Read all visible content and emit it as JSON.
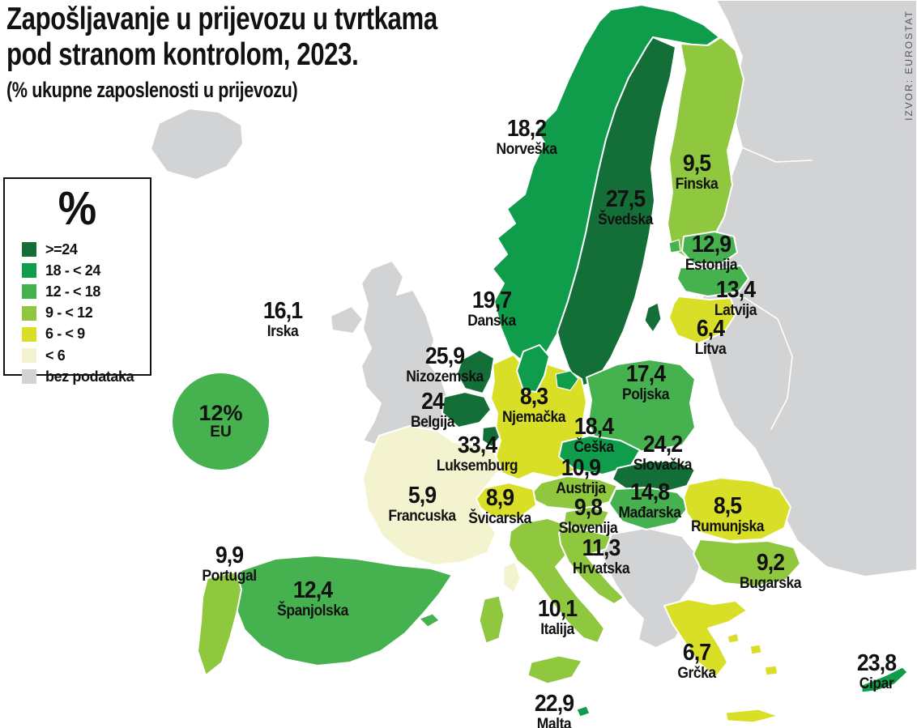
{
  "title": {
    "line1": "Zapošljavanje u prijevozu u tvrtkama",
    "line2": "pod stranom kontrolom, 2023.",
    "subtitle": "(% ukupne zaposlenosti u prijevozu)"
  },
  "source": "IZVOR: EUROSTAT",
  "legend": {
    "title": "%",
    "items": [
      {
        "label": ">=24",
        "min": 24,
        "color": "#136e38"
      },
      {
        "label": "18 - < 24",
        "min": 18,
        "max": 24,
        "color": "#0f9d4b"
      },
      {
        "label": "12 - < 18",
        "min": 12,
        "max": 18,
        "color": "#46b14f"
      },
      {
        "label": "9 - < 12",
        "min": 9,
        "max": 12,
        "color": "#8fc73e"
      },
      {
        "label": "6 - < 9",
        "min": 6,
        "max": 9,
        "color": "#d9df26"
      },
      {
        "label": "< 6",
        "max": 6,
        "color": "#f3f4cf"
      },
      {
        "label": "bez podataka",
        "color": "#d2d3d4"
      }
    ]
  },
  "eu_badge": {
    "value_label": "12%",
    "label": "EU"
  },
  "colors": {
    "sea": "#ffffff",
    "no_data": "#d2d3d4",
    "border": "#ffffff",
    "text": "#111111",
    "source_text": "#55565a"
  },
  "chart_data": {
    "type": "heatmap",
    "subtype": "choropleth",
    "region": "Europe",
    "title": "Zapošljavanje u prijevozu u tvrtkama pod stranom kontrolom, 2023.",
    "unit": "% ukupne zaposlenosti u prijevozu",
    "year": "2023",
    "legend_position": "left",
    "no_data_label": "bez podataka",
    "eu": {
      "name": "EU",
      "value": 12,
      "label": "12%"
    },
    "countries": [
      {
        "id": "norveska",
        "name": "Norveška",
        "label": "18,2",
        "value": 18.2
      },
      {
        "id": "svedska",
        "name": "Švedska",
        "label": "27,5",
        "value": 27.5
      },
      {
        "id": "finska",
        "name": "Finska",
        "label": "9,5",
        "value": 9.5
      },
      {
        "id": "estonija",
        "name": "Estonija",
        "label": "12,9",
        "value": 12.9
      },
      {
        "id": "latvija",
        "name": "Latvija",
        "label": "13,4",
        "value": 13.4
      },
      {
        "id": "litva",
        "name": "Litva",
        "label": "6,4",
        "value": 6.4
      },
      {
        "id": "danska",
        "name": "Danska",
        "label": "19,7",
        "value": 19.7
      },
      {
        "id": "irska",
        "name": "Irska",
        "label": "16,1",
        "value": 16.1
      },
      {
        "id": "nizozemska",
        "name": "Nizozemska",
        "label": "25,9",
        "value": 25.9
      },
      {
        "id": "belgija",
        "name": "Belgija",
        "label": "24",
        "value": 24
      },
      {
        "id": "luksemburg",
        "name": "Luksemburg",
        "label": "33,4",
        "value": 33.4
      },
      {
        "id": "njemacka",
        "name": "Njemačka",
        "label": "8,3",
        "value": 8.3
      },
      {
        "id": "poljska",
        "name": "Poljska",
        "label": "17,4",
        "value": 17.4
      },
      {
        "id": "ceska",
        "name": "Češka",
        "label": "18,4",
        "value": 18.4
      },
      {
        "id": "slovacka",
        "name": "Slovačka",
        "label": "24,2",
        "value": 24.2
      },
      {
        "id": "austrija",
        "name": "Austrija",
        "label": "10,9",
        "value": 10.9
      },
      {
        "id": "madarska",
        "name": "Mađarska",
        "label": "14,8",
        "value": 14.8
      },
      {
        "id": "svicarska",
        "name": "Švicarska",
        "label": "8,9",
        "value": 8.9
      },
      {
        "id": "slovenija",
        "name": "Slovenija",
        "label": "9,8",
        "value": 9.8
      },
      {
        "id": "hrvatska",
        "name": "Hrvatska",
        "label": "11,3",
        "value": 11.3
      },
      {
        "id": "francuska",
        "name": "Francuska",
        "label": "5,9",
        "value": 5.9
      },
      {
        "id": "rumunjska",
        "name": "Rumunjska",
        "label": "8,5",
        "value": 8.5
      },
      {
        "id": "bugarska",
        "name": "Bugarska",
        "label": "9,2",
        "value": 9.2
      },
      {
        "id": "portugal",
        "name": "Portugal",
        "label": "9,9",
        "value": 9.9
      },
      {
        "id": "spanjolska",
        "name": "Španjolska",
        "label": "12,4",
        "value": 12.4
      },
      {
        "id": "italija",
        "name": "Italija",
        "label": "10,1",
        "value": 10.1
      },
      {
        "id": "grcka",
        "name": "Grčka",
        "label": "6,7",
        "value": 6.7
      },
      {
        "id": "malta",
        "name": "Malta",
        "label": "22,9",
        "value": 22.9
      },
      {
        "id": "cipar",
        "name": "Cipar",
        "label": "23,8",
        "value": 23.8
      }
    ]
  }
}
